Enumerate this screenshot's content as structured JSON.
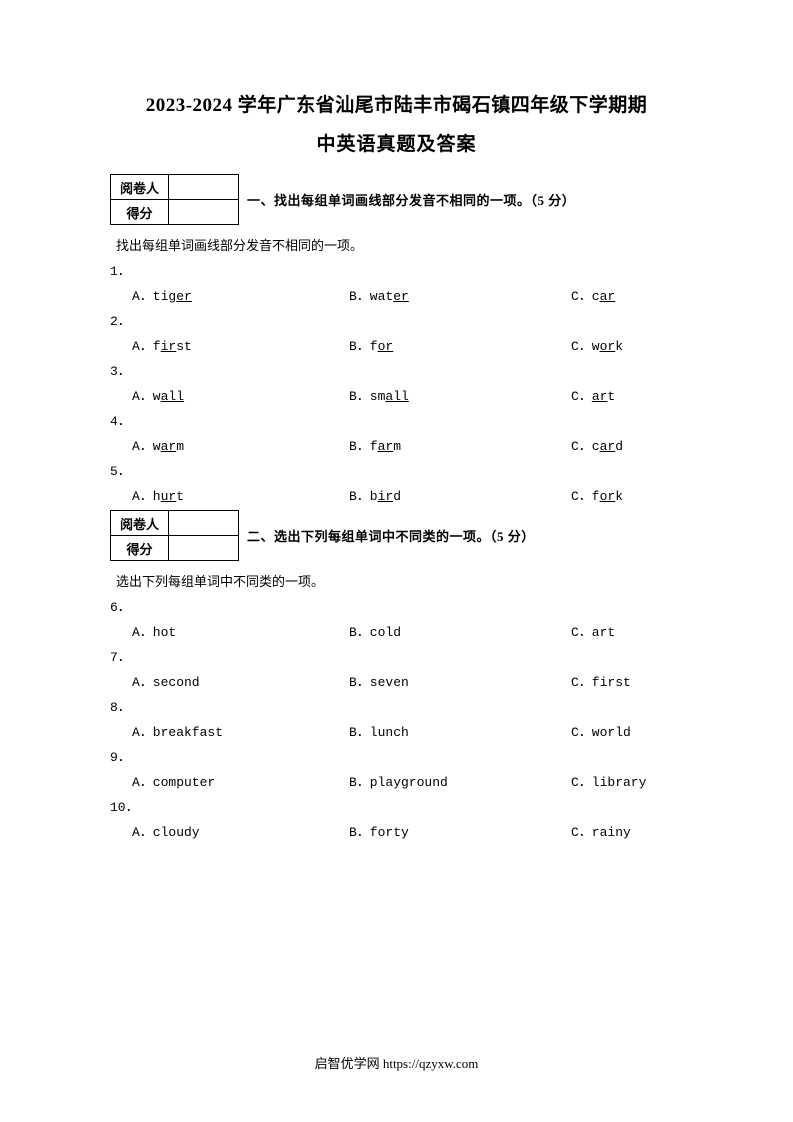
{
  "header": {
    "title_line1": "2023-2024 学年广东省汕尾市陆丰市碣石镇四年级下学期期",
    "title_line2": "中英语真题及答案"
  },
  "score_box": {
    "grader_label": "阅卷人",
    "score_label": "得分"
  },
  "section1": {
    "title": "一、找出每组单词画线部分发音不相同的一项。（5 分）",
    "instruction": "找出每组单词画线部分发音不相同的一项。",
    "questions": [
      {
        "num": "1．",
        "a": {
          "prefix": "A．tig",
          "underlined": "er",
          "suffix": ""
        },
        "b": {
          "prefix": "B．wat",
          "underlined": "er",
          "suffix": ""
        },
        "c": {
          "prefix": "C．c",
          "underlined": "ar",
          "suffix": ""
        }
      },
      {
        "num": "2．",
        "a": {
          "prefix": "A．f",
          "underlined": "ir",
          "suffix": "st"
        },
        "b": {
          "prefix": "B．f",
          "underlined": "or",
          "suffix": ""
        },
        "c": {
          "prefix": "C．w",
          "underlined": "or",
          "suffix": "k"
        }
      },
      {
        "num": "3．",
        "a": {
          "prefix": "A．w",
          "underlined": "all",
          "suffix": ""
        },
        "b": {
          "prefix": "B．sm",
          "underlined": "all",
          "suffix": ""
        },
        "c": {
          "prefix": "C．",
          "underlined": "ar",
          "suffix": "t"
        }
      },
      {
        "num": "4．",
        "a": {
          "prefix": "A．w",
          "underlined": "ar",
          "suffix": "m"
        },
        "b": {
          "prefix": "B．f",
          "underlined": "ar",
          "suffix": "m"
        },
        "c": {
          "prefix": "C．c",
          "underlined": "ar",
          "suffix": "d"
        }
      },
      {
        "num": "5．",
        "a": {
          "prefix": "A．h",
          "underlined": "ur",
          "suffix": "t"
        },
        "b": {
          "prefix": "B．b",
          "underlined": "ir",
          "suffix": "d"
        },
        "c": {
          "prefix": "C．f",
          "underlined": "or",
          "suffix": "k"
        }
      }
    ]
  },
  "section2": {
    "title": "二、选出下列每组单词中不同类的一项。（5 分）",
    "instruction": "选出下列每组单词中不同类的一项。",
    "questions": [
      {
        "num": "6．",
        "a": "A．hot",
        "b": "B．cold",
        "c": "C．art"
      },
      {
        "num": "7．",
        "a": "A．second",
        "b": "B．seven",
        "c": "C．first"
      },
      {
        "num": "8．",
        "a": "A．breakfast",
        "b": "B．lunch",
        "c": "C．world"
      },
      {
        "num": "9．",
        "a": "A．computer",
        "b": "B．playground",
        "c": "C．library"
      },
      {
        "num": "10．",
        "a": "A．cloudy",
        "b": "B．forty",
        "c": "C．rainy"
      }
    ]
  },
  "footer": {
    "text": "启智优学网 https://qzyxw.com"
  },
  "colors": {
    "background": "#ffffff",
    "text": "#000000",
    "border": "#000000"
  },
  "typography": {
    "title_fontsize": 19,
    "body_fontsize": 13,
    "font_family_chinese": "SimSun",
    "font_family_mono": "Courier New"
  }
}
